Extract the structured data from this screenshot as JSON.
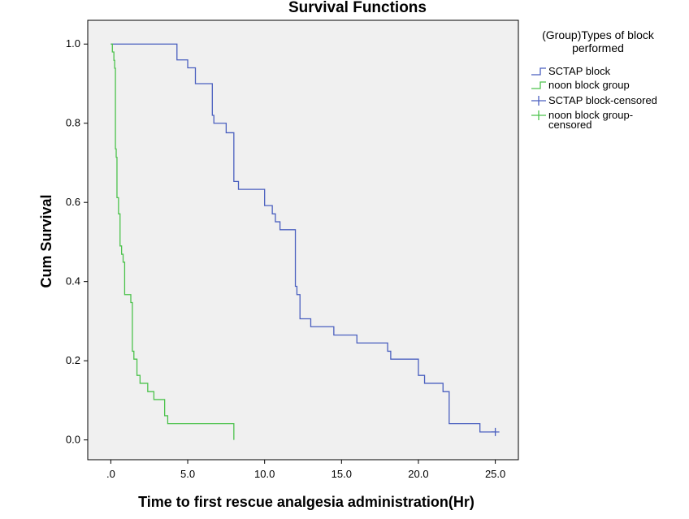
{
  "chart_data": {
    "type": "line",
    "title": "Survival Functions",
    "xlabel": "Time to first rescue analgesia administration(Hr)",
    "ylabel": "Cum Survival",
    "xlim": [
      -1.5,
      26.5
    ],
    "ylim": [
      -0.05,
      1.06
    ],
    "x_ticks": [
      0,
      5,
      10,
      15,
      20,
      25
    ],
    "x_tick_labels": [
      ".0",
      "5.0",
      "10.0",
      "15.0",
      "20.0",
      "25.0"
    ],
    "y_ticks": [
      0,
      0.2,
      0.4,
      0.6,
      0.8,
      1.0
    ],
    "y_tick_labels": [
      "0.0",
      "0.2",
      "0.4",
      "0.6",
      "0.8",
      "1.0"
    ],
    "grid": false,
    "plot_background": "#f0f0f0",
    "legend": {
      "position": "right",
      "title_lines": [
        "(Group)Types of block",
        "performed"
      ],
      "entries": [
        {
          "label_lines": [
            "SCTAP block"
          ],
          "symbol": "step",
          "color": "#4a5fbf"
        },
        {
          "label_lines": [
            "noon block group"
          ],
          "symbol": "step",
          "color": "#4cc24c"
        },
        {
          "label_lines": [
            "SCTAP block-censored"
          ],
          "symbol": "plus",
          "color": "#4a5fbf"
        },
        {
          "label_lines": [
            "noon block group-",
            "censored"
          ],
          "symbol": "plus",
          "color": "#4cc24c"
        }
      ]
    },
    "series": [
      {
        "name": "SCTAP block",
        "step": true,
        "color": "#4a5fbf",
        "points": [
          [
            0,
            1.0
          ],
          [
            4.3,
            0.96
          ],
          [
            5.0,
            0.94
          ],
          [
            5.5,
            0.9
          ],
          [
            6.6,
            0.82
          ],
          [
            6.7,
            0.8
          ],
          [
            7.5,
            0.776
          ],
          [
            8.0,
            0.653
          ],
          [
            8.3,
            0.633
          ],
          [
            10.0,
            0.592
          ],
          [
            10.5,
            0.571
          ],
          [
            10.7,
            0.551
          ],
          [
            11.0,
            0.531
          ],
          [
            12.0,
            0.388
          ],
          [
            12.1,
            0.367
          ],
          [
            12.3,
            0.306
          ],
          [
            13.0,
            0.286
          ],
          [
            14.5,
            0.265
          ],
          [
            16.0,
            0.245
          ],
          [
            18.0,
            0.224
          ],
          [
            18.2,
            0.204
          ],
          [
            20.0,
            0.163
          ],
          [
            20.4,
            0.143
          ],
          [
            21.6,
            0.122
          ],
          [
            22.0,
            0.041
          ],
          [
            24.0,
            0.02
          ],
          [
            25.0,
            0.02
          ]
        ],
        "censored": [
          [
            25.0,
            0.02
          ]
        ]
      },
      {
        "name": "noon block group",
        "step": true,
        "color": "#4cc24c",
        "points": [
          [
            0,
            1.0
          ],
          [
            0.1,
            0.98
          ],
          [
            0.2,
            0.959
          ],
          [
            0.25,
            0.939
          ],
          [
            0.3,
            0.735
          ],
          [
            0.35,
            0.714
          ],
          [
            0.4,
            0.612
          ],
          [
            0.5,
            0.571
          ],
          [
            0.6,
            0.49
          ],
          [
            0.7,
            0.469
          ],
          [
            0.8,
            0.449
          ],
          [
            0.9,
            0.367
          ],
          [
            1.3,
            0.347
          ],
          [
            1.4,
            0.224
          ],
          [
            1.5,
            0.204
          ],
          [
            1.7,
            0.163
          ],
          [
            1.9,
            0.143
          ],
          [
            2.4,
            0.122
          ],
          [
            2.8,
            0.102
          ],
          [
            3.5,
            0.061
          ],
          [
            3.7,
            0.041
          ],
          [
            8.0,
            0.0
          ]
        ],
        "censored": []
      }
    ]
  }
}
